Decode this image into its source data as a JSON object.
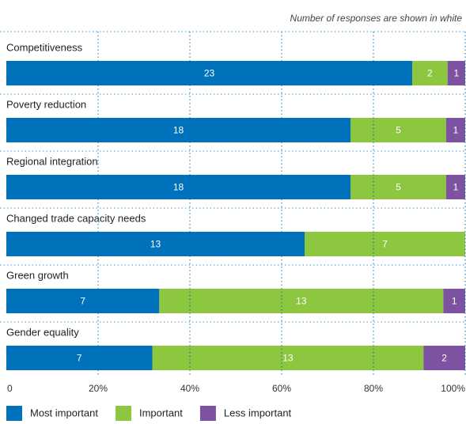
{
  "chart_data": {
    "type": "stacked-bar-percent",
    "subtitle": "Number of responses are shown in white",
    "categories": [
      "Competitiveness",
      "Poverty reduction",
      "Regional integration",
      "Changed trade capacity needs",
      "Green growth",
      "Gender equality"
    ],
    "series": [
      {
        "name": "Most important",
        "color": "#0072bc",
        "values": [
          23,
          18,
          18,
          13,
          7,
          7
        ]
      },
      {
        "name": "Important",
        "color": "#8dc63f",
        "values": [
          2,
          5,
          5,
          7,
          13,
          13
        ]
      },
      {
        "name": "Less important",
        "color": "#7d52a0",
        "values": [
          1,
          1,
          1,
          null,
          1,
          2
        ]
      }
    ],
    "xlim": [
      0,
      100
    ],
    "xticks": [
      0,
      {
        "value": 20,
        "label": "20%"
      },
      {
        "value": 40,
        "label": "40%"
      },
      {
        "value": 60,
        "label": "60%"
      },
      {
        "value": 80,
        "label": "80%"
      },
      {
        "value": 100,
        "label": "100%"
      }
    ],
    "grid": true
  }
}
